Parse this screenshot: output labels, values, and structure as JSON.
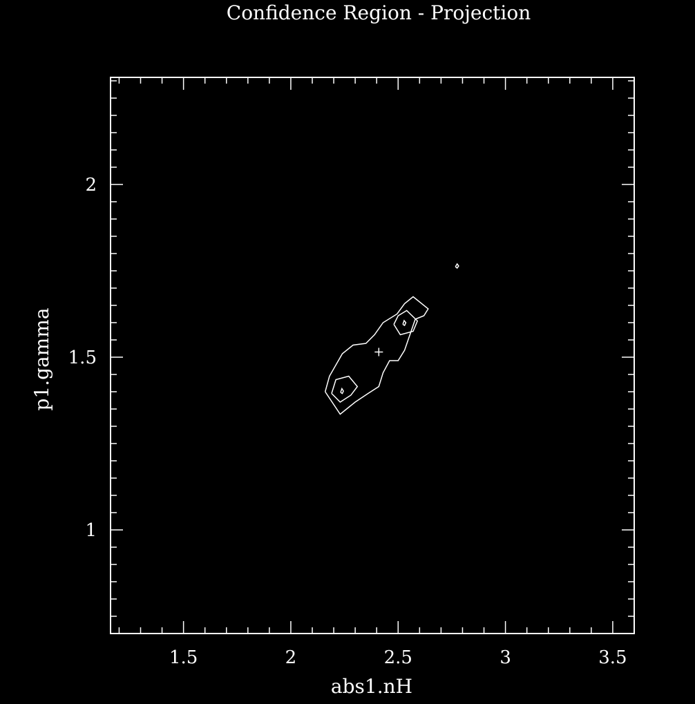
{
  "chart_data": {
    "type": "line",
    "title": "Confidence Region - Projection",
    "xlabel": "abs1.nH",
    "ylabel": "p1.gamma",
    "xlim": [
      1.16,
      3.6
    ],
    "ylim": [
      0.7,
      2.31
    ],
    "x_ticks": [
      {
        "value": 1.5,
        "label": "1.5"
      },
      {
        "value": 2,
        "label": "2"
      },
      {
        "value": 2.5,
        "label": "2.5"
      },
      {
        "value": 3,
        "label": "3"
      },
      {
        "value": 3.5,
        "label": "3.5"
      }
    ],
    "y_ticks": [
      {
        "value": 1,
        "label": "1"
      },
      {
        "value": 1.5,
        "label": "1.5"
      },
      {
        "value": 2,
        "label": "2"
      }
    ],
    "x_minor_step": 0.1,
    "y_minor_step": 0.05,
    "best_fit": {
      "x": 2.41,
      "y": 1.515
    },
    "contours": [
      {
        "name": "outer",
        "points": [
          [
            2.16,
            1.4
          ],
          [
            2.23,
            1.335
          ],
          [
            2.3,
            1.37
          ],
          [
            2.36,
            1.395
          ],
          [
            2.41,
            1.415
          ],
          [
            2.43,
            1.455
          ],
          [
            2.46,
            1.49
          ],
          [
            2.5,
            1.49
          ],
          [
            2.53,
            1.52
          ],
          [
            2.58,
            1.61
          ],
          [
            2.62,
            1.62
          ],
          [
            2.64,
            1.64
          ],
          [
            2.57,
            1.675
          ],
          [
            2.53,
            1.655
          ],
          [
            2.495,
            1.625
          ],
          [
            2.43,
            1.6
          ],
          [
            2.39,
            1.565
          ],
          [
            2.35,
            1.54
          ],
          [
            2.29,
            1.535
          ],
          [
            2.24,
            1.51
          ],
          [
            2.18,
            1.445
          ],
          [
            2.16,
            1.4
          ]
        ]
      },
      {
        "name": "inner-left",
        "points": [
          [
            2.19,
            1.395
          ],
          [
            2.23,
            1.37
          ],
          [
            2.28,
            1.39
          ],
          [
            2.31,
            1.415
          ],
          [
            2.27,
            1.445
          ],
          [
            2.21,
            1.435
          ],
          [
            2.19,
            1.395
          ]
        ]
      },
      {
        "name": "inner-right",
        "points": [
          [
            2.48,
            1.595
          ],
          [
            2.51,
            1.565
          ],
          [
            2.57,
            1.575
          ],
          [
            2.59,
            1.605
          ],
          [
            2.54,
            1.635
          ],
          [
            2.5,
            1.62
          ],
          [
            2.48,
            1.595
          ]
        ]
      },
      {
        "name": "dot-left",
        "points": [
          [
            2.232,
            1.398
          ],
          [
            2.24,
            1.395
          ],
          [
            2.245,
            1.402
          ],
          [
            2.238,
            1.409
          ],
          [
            2.232,
            1.398
          ]
        ]
      },
      {
        "name": "dot-right",
        "points": [
          [
            2.522,
            1.595
          ],
          [
            2.53,
            1.592
          ],
          [
            2.536,
            1.6
          ],
          [
            2.528,
            1.606
          ],
          [
            2.522,
            1.595
          ]
        ]
      },
      {
        "name": "island",
        "points": [
          [
            2.767,
            1.762
          ],
          [
            2.775,
            1.758
          ],
          [
            2.782,
            1.764
          ],
          [
            2.775,
            1.77
          ],
          [
            2.767,
            1.762
          ]
        ]
      }
    ]
  }
}
